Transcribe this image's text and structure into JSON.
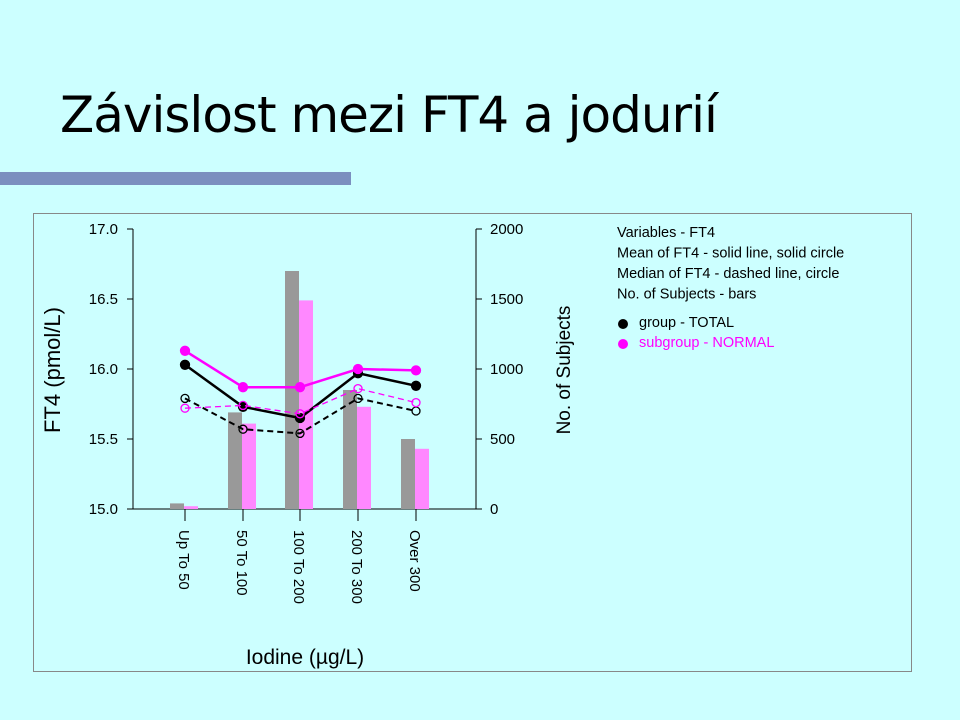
{
  "slide": {
    "title": "Závislost mezi FT4 a jodurií"
  },
  "chart_data": {
    "type": "bar+line",
    "categories": [
      "Up To 50",
      "50 To 100",
      "100 To 200",
      "200 To 300",
      "Over 300"
    ],
    "xlabel": "Iodine (µg/L)",
    "ylabel_left": "FT4 (pmol/L)",
    "ylabel_right": "No. of Subjects",
    "ylim_left": [
      15.0,
      17.0
    ],
    "ylim_right": [
      0,
      2000
    ],
    "yticks_left": [
      "15.0",
      "15.5",
      "16.0",
      "16.5",
      "17.0"
    ],
    "yticks_right": [
      "0",
      "500",
      "1000",
      "1500",
      "2000"
    ],
    "bars": [
      {
        "name": "group - TOTAL",
        "color": "#999999",
        "values": [
          40,
          690,
          1700,
          850,
          500
        ]
      },
      {
        "name": "subgroup - NORMAL",
        "color": "#ff88ff",
        "values": [
          20,
          610,
          1490,
          730,
          430
        ]
      }
    ],
    "lines": [
      {
        "group": "TOTAL",
        "stat": "mean",
        "color": "#000000",
        "values": [
          16.03,
          15.73,
          15.65,
          15.97,
          15.88
        ]
      },
      {
        "group": "NORMAL",
        "stat": "mean",
        "color": "#ff00ff",
        "values": [
          16.13,
          15.87,
          15.87,
          16.0,
          15.99
        ]
      },
      {
        "group": "TOTAL",
        "stat": "median",
        "color": "#000000",
        "values": [
          15.79,
          15.57,
          15.54,
          15.79,
          15.7
        ]
      },
      {
        "group": "NORMAL",
        "stat": "median",
        "color": "#ff00ff",
        "values": [
          15.72,
          15.74,
          15.68,
          15.86,
          15.76
        ]
      }
    ],
    "legend": {
      "position": "top-right",
      "lines": [
        "Variables - FT4",
        "Mean of FT4 - solid line, solid circle",
        "Median of FT4 - dashed line, circle",
        "No. of Subjects - bars"
      ],
      "items": [
        {
          "label": "group - TOTAL",
          "color": "#000000"
        },
        {
          "label": "subgroup - NORMAL",
          "color": "#ff00ff"
        }
      ]
    }
  }
}
